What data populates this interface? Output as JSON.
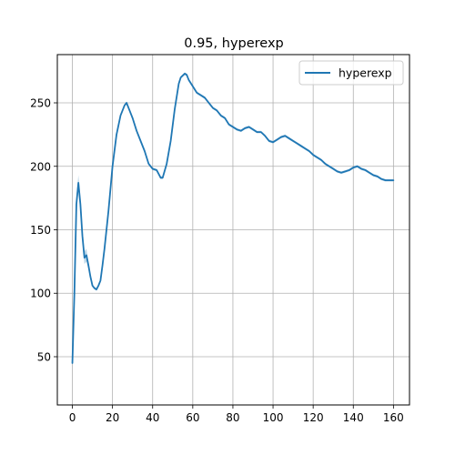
{
  "chart_data": {
    "type": "line",
    "title": "0.95, hyperexp",
    "xlabel": "",
    "ylabel": "",
    "xlim": [
      -7.5,
      168
    ],
    "ylim": [
      12,
      288
    ],
    "xticks": [
      0,
      20,
      40,
      60,
      80,
      100,
      120,
      140,
      160
    ],
    "yticks": [
      50,
      100,
      150,
      200,
      250
    ],
    "grid": true,
    "legend": {
      "placement": "top-right"
    },
    "series": [
      {
        "name": "hyperexp",
        "color": "#1f77b4",
        "band_color": "#1f77b4",
        "x": [
          0,
          1,
          2,
          3,
          4,
          5,
          6,
          7,
          8,
          9,
          10,
          11,
          12,
          13,
          14,
          15,
          16,
          18,
          20,
          22,
          24,
          26,
          27,
          28,
          30,
          32,
          34,
          36,
          38,
          40,
          42,
          44,
          45,
          47,
          49,
          51,
          53,
          54,
          56,
          57,
          58,
          60,
          62,
          64,
          66,
          68,
          70,
          72,
          74,
          76,
          78,
          80,
          82,
          84,
          86,
          88,
          90,
          92,
          94,
          96,
          98,
          100,
          102,
          104,
          106,
          108,
          110,
          112,
          114,
          116,
          118,
          120,
          122,
          124,
          126,
          128,
          130,
          132,
          134,
          136,
          138,
          140,
          142,
          144,
          146,
          148,
          150,
          152,
          154,
          156,
          158,
          160
        ],
        "y": [
          45,
          100,
          170,
          187,
          170,
          145,
          128,
          130,
          122,
          113,
          106,
          104,
          103,
          106,
          110,
          122,
          135,
          165,
          200,
          225,
          240,
          248,
          250,
          246,
          238,
          228,
          220,
          212,
          202,
          198,
          197,
          191,
          191,
          202,
          220,
          245,
          265,
          270,
          273,
          272,
          268,
          263,
          258,
          256,
          254,
          250,
          246,
          244,
          240,
          238,
          233,
          231,
          229,
          228,
          230,
          231,
          229,
          227,
          227,
          224,
          220,
          219,
          221,
          223,
          224,
          222,
          220,
          218,
          216,
          214,
          212,
          209,
          207,
          205,
          202,
          200,
          198,
          196,
          195,
          196,
          197,
          199,
          200,
          198,
          197,
          195,
          193,
          192,
          190,
          189,
          189,
          189
        ],
        "band": [
          1,
          4,
          6,
          6,
          5,
          5,
          5,
          5,
          3,
          2,
          1,
          1,
          1,
          1,
          1,
          1,
          1,
          1,
          1,
          1,
          1,
          1,
          1,
          1,
          1,
          1,
          1,
          1,
          1,
          1,
          1,
          1,
          1,
          1,
          1,
          1,
          1,
          1,
          1,
          1,
          1,
          1,
          1,
          1,
          1,
          1,
          1,
          1,
          1,
          1,
          1,
          1,
          1,
          1,
          1,
          1,
          1,
          1,
          1,
          1,
          1,
          1,
          1,
          1,
          1,
          1,
          1,
          1,
          1,
          1,
          1,
          1,
          1,
          1,
          1,
          1,
          1,
          1,
          1,
          1,
          1,
          1,
          1,
          1,
          1,
          1,
          1,
          1,
          1,
          1,
          1,
          1
        ]
      }
    ]
  }
}
